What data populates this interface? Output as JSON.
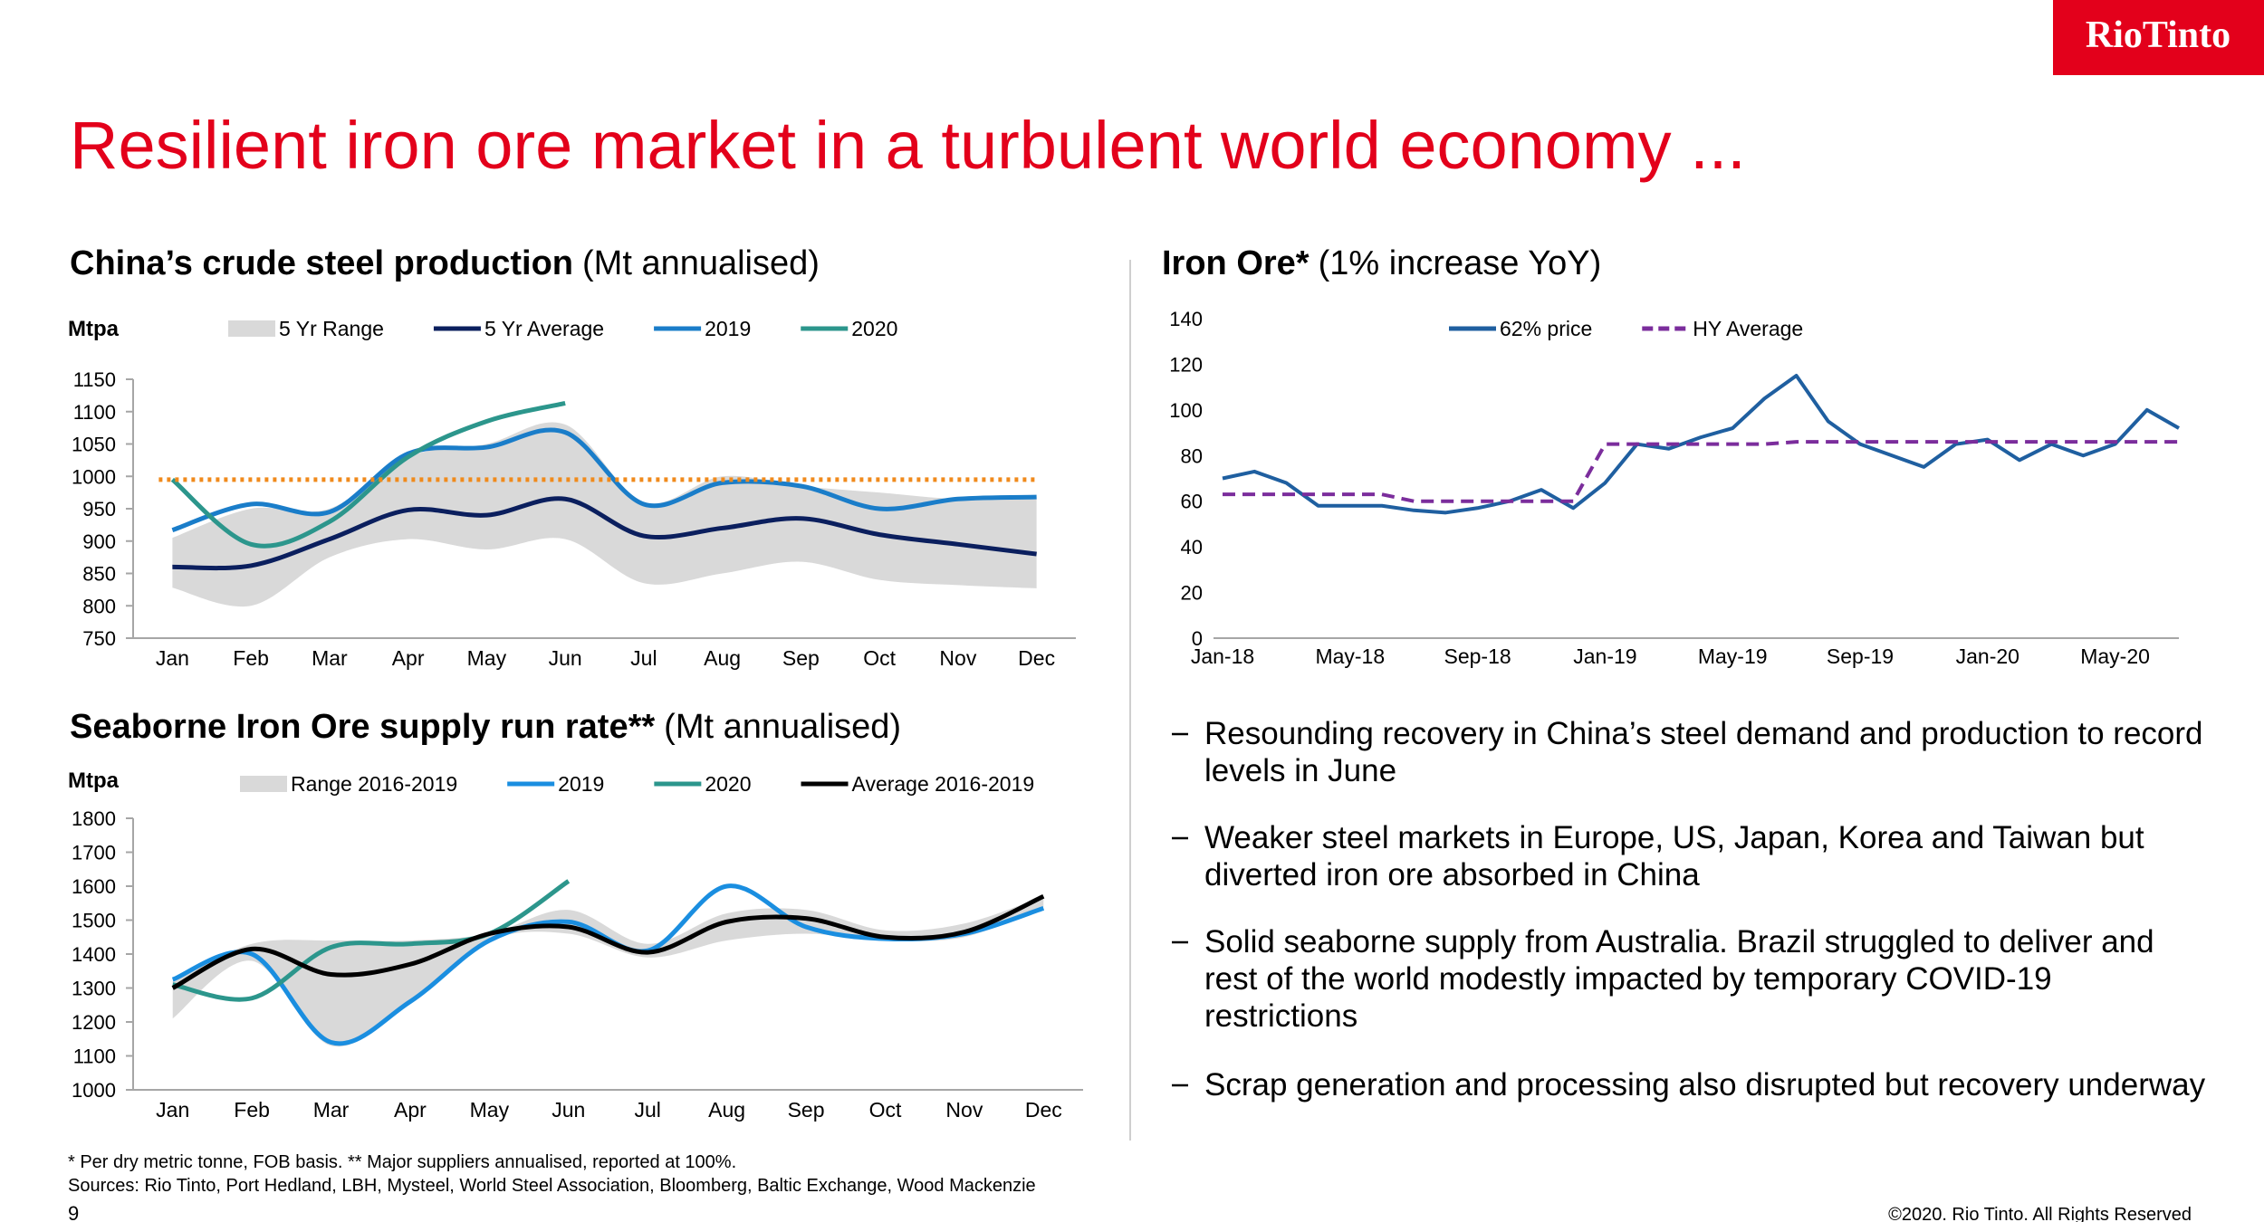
{
  "header": {
    "title": "Resilient iron ore market in a turbulent world economy ...",
    "logo": "RioTinto"
  },
  "chart_data": [
    {
      "type": "line",
      "title": "China’s crude steel production",
      "subtitle": "(Mt annualised)",
      "y_label": "Mtpa",
      "categories": [
        "Jan",
        "Feb",
        "Mar",
        "Apr",
        "May",
        "Jun",
        "Jul",
        "Aug",
        "Sep",
        "Oct",
        "Nov",
        "Dec"
      ],
      "ylim": [
        750,
        1150
      ],
      "yticks": [
        750,
        800,
        850,
        900,
        950,
        1000,
        1050,
        1100,
        1150
      ],
      "smooth": true,
      "reference_line": {
        "value": 995,
        "color": "#f08a1c"
      },
      "series": [
        {
          "name": "5 Yr Range",
          "color": "#d9d9d9",
          "low": [
            828,
            800,
            875,
            903,
            887,
            903,
            835,
            850,
            868,
            840,
            832,
            827
          ],
          "high": [
            905,
            950,
            950,
            1030,
            1050,
            1080,
            960,
            1000,
            985,
            975,
            965,
            968
          ]
        },
        {
          "name": "5 Yr Average",
          "color": "#0b1f5e",
          "values": [
            860,
            862,
            903,
            948,
            940,
            965,
            908,
            920,
            935,
            910,
            895,
            880
          ]
        },
        {
          "name": "2019",
          "color": "#1a7dc9",
          "values": [
            917,
            957,
            945,
            1035,
            1045,
            1068,
            957,
            990,
            985,
            950,
            965,
            968
          ]
        },
        {
          "name": "2020",
          "color": "#2c968c",
          "values": [
            995,
            895,
            930,
            1030,
            1085,
            1113,
            null,
            null,
            null,
            null,
            null,
            null
          ]
        }
      ]
    },
    {
      "type": "line",
      "title": "Seaborne Iron Ore supply run rate**",
      "subtitle": "(Mt annualised)",
      "y_label": "Mtpa",
      "categories": [
        "Jan",
        "Feb",
        "Mar",
        "Apr",
        "May",
        "Jun",
        "Jul",
        "Aug",
        "Sep",
        "Oct",
        "Nov",
        "Dec"
      ],
      "ylim": [
        1000,
        1800
      ],
      "yticks": [
        1000,
        1100,
        1200,
        1300,
        1400,
        1500,
        1600,
        1700,
        1800
      ],
      "smooth": true,
      "series": [
        {
          "name": "Range 2016-2019",
          "color": "#d9d9d9",
          "low": [
            1210,
            1380,
            1130,
            1260,
            1440,
            1460,
            1390,
            1440,
            1460,
            1440,
            1450,
            1540
          ],
          "high": [
            1320,
            1430,
            1440,
            1440,
            1460,
            1530,
            1430,
            1520,
            1530,
            1470,
            1490,
            1570
          ]
        },
        {
          "name": "2019",
          "color": "#1a8ee0",
          "values": [
            1325,
            1400,
            1140,
            1260,
            1440,
            1495,
            1410,
            1600,
            1480,
            1445,
            1460,
            1535
          ]
        },
        {
          "name": "2020",
          "color": "#2c968c",
          "values": [
            1310,
            1270,
            1420,
            1430,
            1460,
            1615,
            null,
            null,
            null,
            null,
            null,
            null
          ]
        },
        {
          "name": "Average 2016-2019",
          "color": "#000000",
          "values": [
            1300,
            1415,
            1340,
            1370,
            1460,
            1480,
            1405,
            1495,
            1505,
            1450,
            1465,
            1570
          ]
        }
      ]
    },
    {
      "type": "line",
      "title": "Iron Ore*",
      "subtitle": "(1% increase YoY)",
      "categories": [
        "Jan-18",
        null,
        null,
        null,
        "May-18",
        null,
        null,
        null,
        "Sep-18",
        null,
        null,
        null,
        "Jan-19",
        null,
        null,
        null,
        "May-19",
        null,
        null,
        null,
        "Sep-19",
        null,
        null,
        null,
        "Jan-20",
        null,
        null,
        null,
        "May-20",
        null,
        null
      ],
      "ylim": [
        0,
        140
      ],
      "yticks": [
        0,
        20,
        40,
        60,
        80,
        100,
        120,
        140
      ],
      "smooth": false,
      "series": [
        {
          "name": "62% price",
          "color": "#1f5fa0",
          "values": [
            70,
            73,
            68,
            58,
            58,
            58,
            56,
            55,
            57,
            60,
            65,
            57,
            68,
            85,
            83,
            88,
            92,
            105,
            115,
            95,
            85,
            80,
            75,
            85,
            87,
            78,
            85,
            80,
            85,
            100,
            92
          ]
        },
        {
          "name": "HY Average",
          "color": "#7b2d9c",
          "style": "dashed",
          "values": [
            63,
            63,
            63,
            63,
            63,
            63,
            60,
            60,
            60,
            60,
            60,
            60,
            85,
            85,
            85,
            85,
            85,
            85,
            86,
            86,
            86,
            86,
            86,
            86,
            86,
            86,
            86,
            86,
            86,
            86,
            86
          ]
        }
      ]
    }
  ],
  "bullets": [
    "Resounding recovery in China’s steel demand and production to record levels in June",
    "Weaker steel markets in Europe, US, Japan, Korea and Taiwan but diverted iron ore absorbed in China",
    "Solid seaborne supply from Australia. Brazil struggled to deliver and rest of the world modestly impacted by temporary COVID-19 restrictions",
    "Scrap generation and processing also disrupted but recovery underway"
  ],
  "footnotes": [
    "* Per dry metric tonne, FOB basis. ** Major suppliers annualised, reported at 100%.",
    "Sources: Rio Tinto, Port Hedland, LBH, Mysteel, World Steel Association, Bloomberg, Baltic Exchange, Wood Mackenzie"
  ],
  "page_number": 9,
  "copyright": "©2020. Rio Tinto. All Rights Reserved"
}
